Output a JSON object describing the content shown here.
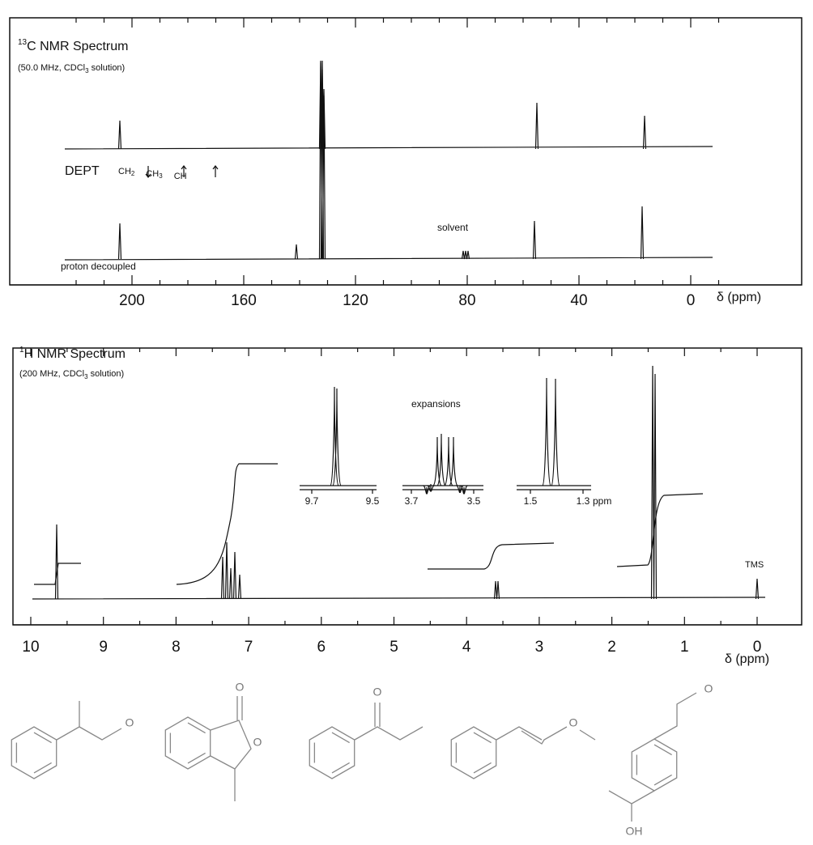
{
  "c13": {
    "title_sup": "13",
    "title": "C NMR Spectrum",
    "subtitle_a": "(50.0 MHz, CDCl",
    "subtitle_sub": "3",
    "subtitle_b": " solution)",
    "dept": "DEPT",
    "dept_items": [
      {
        "text": "CH",
        "sub": "2"
      },
      {
        "text": "CH",
        "sub": "3"
      },
      {
        "text": "CH"
      }
    ],
    "solvent": "solvent",
    "decoupled": "proton decoupled",
    "ticks": [
      200,
      160,
      120,
      80,
      40,
      0
    ],
    "axis_label": "δ (ppm)"
  },
  "h1": {
    "title_sup": "1",
    "title": "H NMR Spectrum",
    "subtitle_a": "(200 MHz, CDCl",
    "subtitle_sub": "3",
    "subtitle_b": " solution)",
    "expansions": "expansions",
    "expansion_ticks": [
      [
        9.7,
        9.5
      ],
      [
        3.7,
        3.5
      ],
      [
        1.5,
        1.3
      ]
    ],
    "ppm": "ppm",
    "tms": "TMS",
    "ticks": [
      10,
      9,
      8,
      7,
      6,
      5,
      4,
      3,
      2,
      1,
      0
    ],
    "axis_label": "δ (ppm)"
  },
  "structures": [
    {
      "labels": [
        "O"
      ]
    },
    {
      "labels": [
        "O",
        "O"
      ]
    },
    {
      "labels": [
        "O"
      ]
    },
    {
      "labels": [
        "O"
      ]
    },
    {
      "labels": [
        "O",
        "OH"
      ]
    }
  ]
}
